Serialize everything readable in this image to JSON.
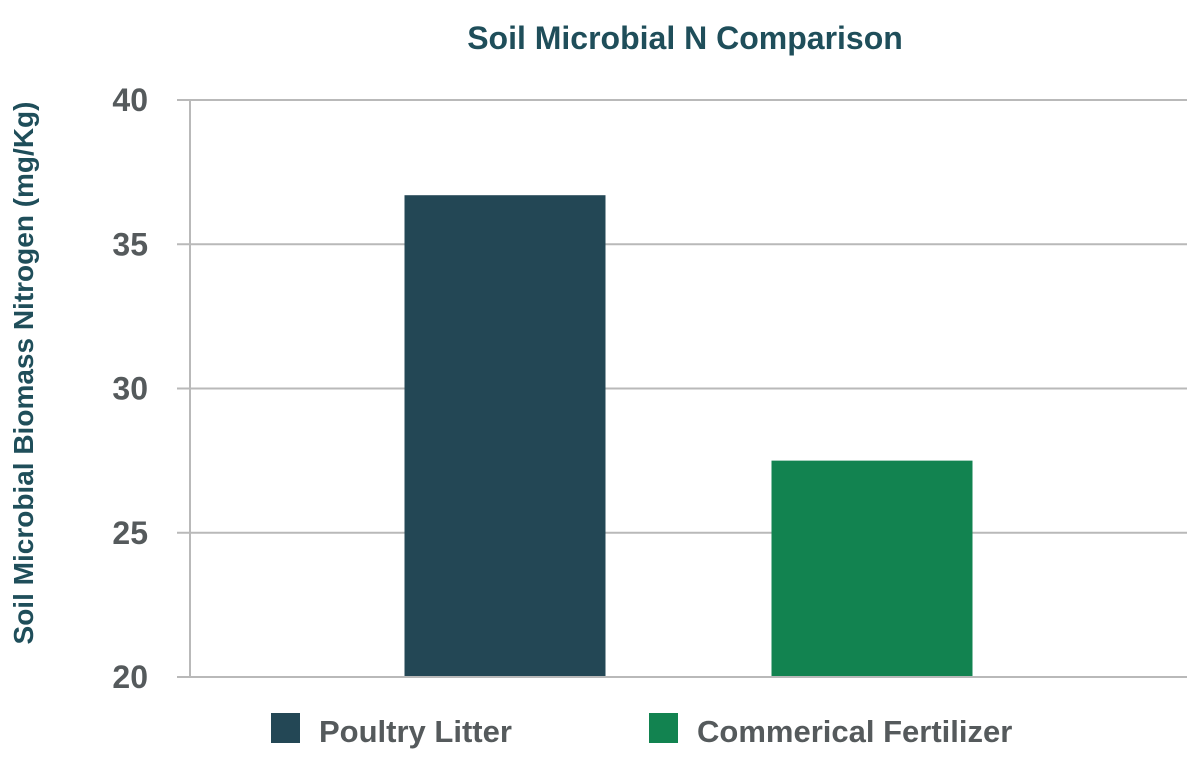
{
  "chart_data": {
    "type": "bar",
    "title": "Soil Microbial N Comparison",
    "xlabel": "",
    "ylabel": "Soil Microbial Biomass Nitrogen (mg/Kg)",
    "ylim": [
      20,
      40
    ],
    "yticks": [
      20,
      25,
      30,
      35,
      40
    ],
    "grid": true,
    "legend_position": "bottom",
    "series": [
      {
        "name": "Poultry Litter",
        "value": 36.7,
        "color": "#234755"
      },
      {
        "name": "Commerical Fertilizer",
        "value": 27.5,
        "color": "#128350"
      }
    ]
  }
}
